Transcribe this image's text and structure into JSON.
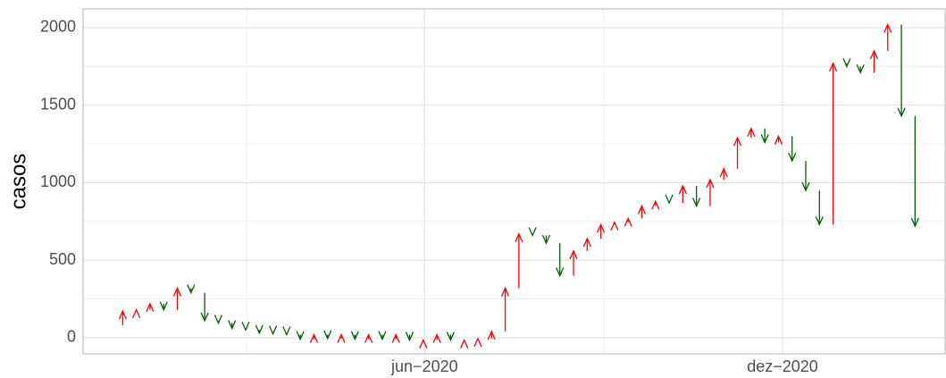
{
  "chart_data": {
    "type": "arrow",
    "y_label": "casos",
    "x": [
      0,
      1,
      2,
      3,
      4,
      5,
      6,
      7,
      8,
      9,
      10,
      11,
      12,
      13,
      14,
      15,
      16,
      17,
      18,
      19,
      20,
      21,
      22,
      23,
      24,
      25,
      26,
      27,
      28,
      29,
      30,
      31,
      32,
      33,
      34,
      35,
      36,
      37,
      38,
      39,
      40,
      41,
      42,
      43,
      44,
      45,
      46,
      47,
      48,
      49,
      50,
      51,
      52,
      53,
      54,
      55,
      56,
      57,
      58,
      59
    ],
    "series": [
      {
        "values": [
          80,
          172,
          180,
          220,
          180,
          320,
          290,
          110,
          95,
          60,
          50,
          30,
          25,
          20,
          -10,
          20,
          -5,
          20,
          -10,
          20,
          -10,
          20,
          -15,
          -15,
          20,
          -15,
          -15,
          -5,
          40,
          320,
          670,
          660,
          610,
          400,
          560,
          640,
          730,
          745,
          770,
          850,
          880,
          870,
          980,
          850,
          1020,
          1090,
          1290,
          1350,
          1260,
          1300,
          1140,
          950,
          730,
          1770,
          1750,
          1710,
          1850,
          2020,
          1430,
          720
        ]
      }
    ],
    "up_color": "#ff0000",
    "down_color": "#006400",
    "xlim": [
      -1.9,
      61.2
    ],
    "xticks": [
      {
        "value": 23.1,
        "label": "jun−2020"
      },
      {
        "value": 49.3,
        "label": "dez−2020"
      }
    ],
    "xminor": [
      10.1,
      36.2
    ],
    "ylim": [
      -104,
      2121
    ],
    "yticks": [
      0,
      500,
      1000,
      1500,
      2000
    ],
    "yminor": [
      250,
      750,
      1250,
      1750
    ],
    "grid": true
  }
}
